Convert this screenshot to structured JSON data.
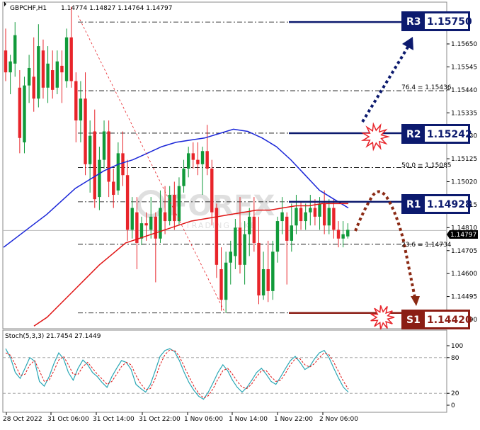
{
  "header": {
    "symbol": "GBPCHF,H1",
    "ohlc": "1.14774 1.14827 1.14764 1.14797",
    "stoch_label": "Stoch(5,3,3) 21.7454 27.1449"
  },
  "watermark": {
    "brand": "FOREX",
    "tagline": "TRADING LIKE"
  },
  "current_price": "1.14797",
  "levels": {
    "r3": {
      "label": "R3",
      "value": "1.15750"
    },
    "r2": {
      "label": "R2",
      "value": "1.15242"
    },
    "r1": {
      "label": "R1",
      "value": "1.14928"
    },
    "s1": {
      "label": "S1",
      "value": "1.14420"
    }
  },
  "fib_labels": {
    "f764": "76.4 = 1.15436",
    "f500": "50.0 = 1.15085",
    "f236": "23.6 = 1.14734"
  },
  "colors": {
    "bull": "#119a3a",
    "bear": "#e8242a",
    "blue_ma": "#1a26d8",
    "red_ma": "#e01515",
    "tag_blue": "#0c1a6e",
    "tag_red": "#8b1d14",
    "stoch_main": "#2aa7b5",
    "stoch_signal": "#e01515"
  },
  "chart_data": [
    {
      "type": "candlestick",
      "title": "GBPCHF,H1",
      "y_ticks": [
        "1.15650",
        "1.15545",
        "1.15440",
        "1.15335",
        "1.15230",
        "1.15125",
        "1.15020",
        "1.14915",
        "1.14810",
        "1.14705",
        "1.14600",
        "1.14495",
        "1.14390"
      ],
      "x_ticks": [
        "28 Oct 2022",
        "31 Oct 06:00",
        "31 Oct 14:00",
        "31 Oct 22:00",
        "1 Nov 06:00",
        "1 Nov 14:00",
        "1 Nov 22:00",
        "2 Nov 06:00"
      ],
      "ylim": [
        1.1436,
        1.1576
      ],
      "candles": [
        [
          1.1562,
          1.1572,
          1.1548,
          1.1552
        ],
        [
          1.1552,
          1.156,
          1.1542,
          1.1557
        ],
        [
          1.1556,
          1.1575,
          1.155,
          1.1569
        ],
        [
          1.1545,
          1.1553,
          1.1515,
          1.1522
        ],
        [
          1.152,
          1.155,
          1.1515,
          1.1546
        ],
        [
          1.1546,
          1.156,
          1.1538,
          1.1554
        ],
        [
          1.155,
          1.1568,
          1.1534,
          1.154
        ],
        [
          1.154,
          1.1574,
          1.1536,
          1.1564
        ],
        [
          1.1562,
          1.1567,
          1.154,
          1.1545
        ],
        [
          1.1545,
          1.1564,
          1.1538,
          1.1556
        ],
        [
          1.1553,
          1.1562,
          1.154,
          1.1544
        ],
        [
          1.1545,
          1.1562,
          1.1542,
          1.1557
        ],
        [
          1.1555,
          1.1562,
          1.1538,
          1.1552
        ],
        [
          1.1548,
          1.1572,
          1.1545,
          1.1568
        ],
        [
          1.1568,
          1.1582,
          1.1545,
          1.1548
        ],
        [
          1.1548,
          1.1552,
          1.152,
          1.153
        ],
        [
          1.153,
          1.1548,
          1.152,
          1.154
        ],
        [
          1.154,
          1.1552,
          1.1505,
          1.151
        ],
        [
          1.151,
          1.153,
          1.1497,
          1.1523
        ],
        [
          1.1525,
          1.1535,
          1.149,
          1.1494
        ],
        [
          1.1495,
          1.1518,
          1.1489,
          1.1512
        ],
        [
          1.1512,
          1.153,
          1.1508,
          1.1525
        ],
        [
          1.1525,
          1.153,
          1.1495,
          1.1502
        ],
        [
          1.1502,
          1.1508,
          1.149,
          1.1496
        ],
        [
          1.1498,
          1.152,
          1.1496,
          1.1515
        ],
        [
          1.1515,
          1.1525,
          1.15,
          1.1505
        ],
        [
          1.1505,
          1.1512,
          1.1475,
          1.148
        ],
        [
          1.148,
          1.1495,
          1.1476,
          1.149
        ],
        [
          1.1488,
          1.1495,
          1.1462,
          1.1474
        ],
        [
          1.1476,
          1.1486,
          1.1473,
          1.1483
        ],
        [
          1.1483,
          1.1488,
          1.1475,
          1.1482
        ],
        [
          1.148,
          1.1495,
          1.1476,
          1.1486
        ],
        [
          1.1486,
          1.1488,
          1.1456,
          1.1476
        ],
        [
          1.1476,
          1.1498,
          1.1474,
          1.149
        ],
        [
          1.1488,
          1.15,
          1.1478,
          1.1484
        ],
        [
          1.1484,
          1.15,
          1.1482,
          1.1496
        ],
        [
          1.1496,
          1.1502,
          1.148,
          1.1484
        ],
        [
          1.1484,
          1.1504,
          1.1482,
          1.15
        ],
        [
          1.15,
          1.1512,
          1.1497,
          1.1508
        ],
        [
          1.1508,
          1.1518,
          1.1504,
          1.1515
        ],
        [
          1.1515,
          1.152,
          1.1508,
          1.1512
        ],
        [
          1.1512,
          1.152,
          1.1505,
          1.151
        ],
        [
          1.151,
          1.1518,
          1.1496,
          1.1516
        ],
        [
          1.1516,
          1.1528,
          1.1505,
          1.1508
        ],
        [
          1.1508,
          1.1512,
          1.1482,
          1.1488
        ],
        [
          1.149,
          1.1492,
          1.1458,
          1.1464
        ],
        [
          1.1462,
          1.1472,
          1.1443,
          1.1448
        ],
        [
          1.1448,
          1.147,
          1.1442,
          1.1465
        ],
        [
          1.1465,
          1.1475,
          1.1455,
          1.147
        ],
        [
          1.1468,
          1.1485,
          1.1462,
          1.1481
        ],
        [
          1.1481,
          1.1495,
          1.146,
          1.1464
        ],
        [
          1.1464,
          1.1484,
          1.1455,
          1.1478
        ],
        [
          1.1478,
          1.149,
          1.1468,
          1.1486
        ],
        [
          1.1486,
          1.1495,
          1.147,
          1.1474
        ],
        [
          1.1474,
          1.1486,
          1.1446,
          1.145
        ],
        [
          1.145,
          1.147,
          1.1448,
          1.1462
        ],
        [
          1.1462,
          1.1475,
          1.1447,
          1.1452
        ],
        [
          1.1452,
          1.1475,
          1.1448,
          1.147
        ],
        [
          1.147,
          1.1486,
          1.1465,
          1.1484
        ],
        [
          1.1484,
          1.1495,
          1.1478,
          1.1488
        ],
        [
          1.1486,
          1.1488,
          1.1455,
          1.1475
        ],
        [
          1.1475,
          1.1492,
          1.147,
          1.1482
        ],
        [
          1.1482,
          1.1496,
          1.1478,
          1.149
        ],
        [
          1.149,
          1.1493,
          1.148,
          1.1484
        ],
        [
          1.1484,
          1.1492,
          1.148,
          1.1488
        ],
        [
          1.1488,
          1.1496,
          1.1482,
          1.149
        ],
        [
          1.149,
          1.1494,
          1.1482,
          1.1486
        ],
        [
          1.1486,
          1.1495,
          1.148,
          1.1492
        ],
        [
          1.1492,
          1.1498,
          1.1478,
          1.1482
        ],
        [
          1.1482,
          1.1494,
          1.1478,
          1.149
        ],
        [
          1.149,
          1.1494,
          1.1476,
          1.148
        ],
        [
          1.148,
          1.1484,
          1.1472,
          1.1476
        ],
        [
          1.1476,
          1.1484,
          1.1472,
          1.1478
        ],
        [
          1.1477,
          1.1483,
          1.1476,
          1.148
        ]
      ],
      "ma_blue": [
        1.1472,
        1.1477,
        1.1482,
        1.1487,
        1.1493,
        1.1499,
        1.1503,
        1.1507,
        1.151,
        1.1512,
        1.1515,
        1.1518,
        1.152,
        1.1521,
        1.1522,
        1.1524,
        1.1526,
        1.1525,
        1.1522,
        1.1518,
        1.1512,
        1.1505,
        1.1498,
        1.1494,
        1.149
      ],
      "ma_red": [
        1.1436,
        1.144,
        1.1446,
        1.1452,
        1.1458,
        1.1464,
        1.1469,
        1.1474,
        1.1476,
        1.1478,
        1.148,
        1.1482,
        1.1484,
        1.1485,
        1.1486,
        1.1487,
        1.1488,
        1.1489,
        1.1489,
        1.149,
        1.1491,
        1.1491,
        1.1492,
        1.1492,
        1.1492
      ]
    },
    {
      "type": "line",
      "title": "Stoch(5,3,3) 21.7454 27.1449",
      "y_ticks": [
        "100",
        "80",
        "20",
        "0"
      ],
      "ylim": [
        0,
        100
      ],
      "series": [
        {
          "values": [
            95,
            80,
            55,
            45,
            62,
            80,
            74,
            40,
            32,
            48,
            70,
            88,
            78,
            55,
            42,
            62,
            76,
            68,
            55,
            48,
            38,
            30,
            48,
            62,
            75,
            72,
            60,
            35,
            28,
            22,
            35,
            58,
            82,
            92,
            95,
            90,
            75,
            55,
            38,
            25,
            15,
            10,
            22,
            38,
            55,
            68,
            58,
            42,
            30,
            22,
            30,
            42,
            55,
            62,
            52,
            40,
            35,
            48,
            62,
            75,
            82,
            72,
            60,
            65,
            78,
            88,
            92,
            80,
            62,
            45,
            30,
            22
          ]
        },
        {
          "values": [
            88,
            84,
            68,
            50,
            52,
            68,
            75,
            58,
            40,
            42,
            58,
            76,
            82,
            68,
            52,
            52,
            65,
            72,
            62,
            52,
            44,
            35,
            40,
            52,
            65,
            72,
            68,
            50,
            36,
            26,
            28,
            45,
            68,
            85,
            93,
            92,
            82,
            65,
            48,
            32,
            20,
            12,
            16,
            28,
            44,
            58,
            62,
            52,
            40,
            30,
            28,
            36,
            48,
            58,
            58,
            48,
            40,
            42,
            54,
            68,
            78,
            78,
            68,
            64,
            70,
            80,
            88,
            85,
            72,
            56,
            40,
            27
          ]
        }
      ]
    }
  ]
}
